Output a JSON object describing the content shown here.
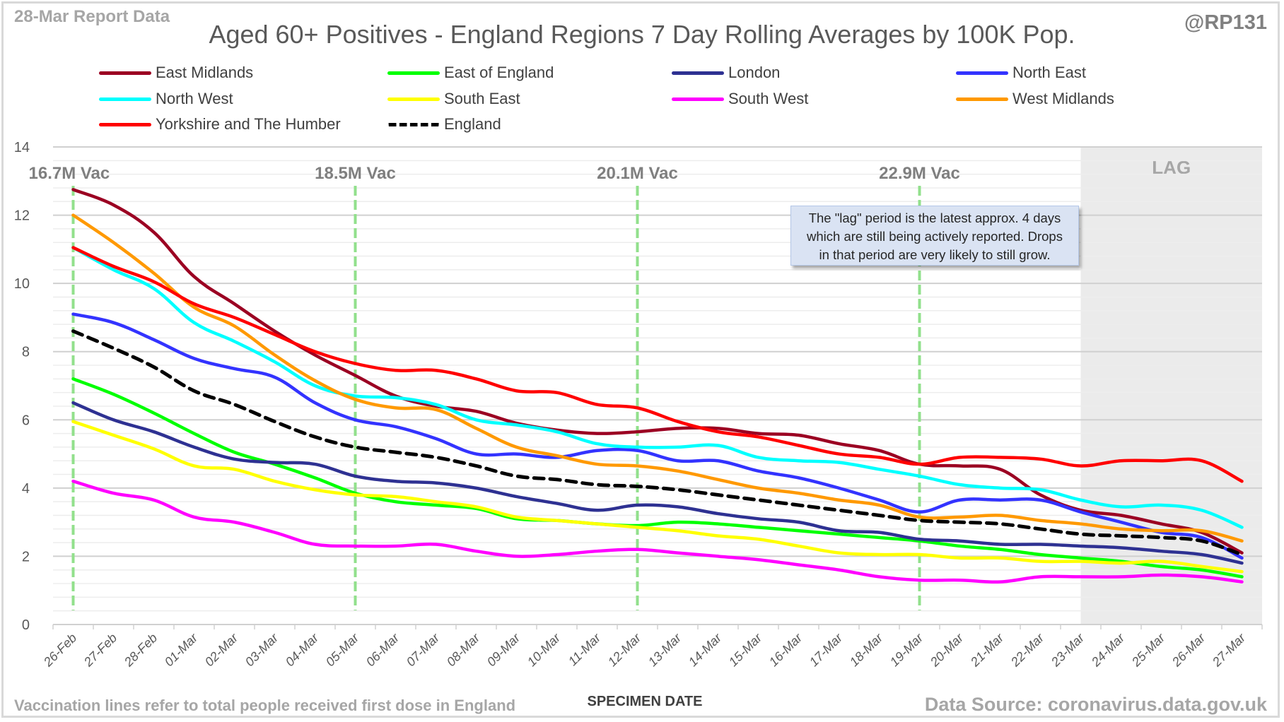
{
  "header": {
    "report_date": "28-Mar Report Data",
    "title": "Aged 60+ Positives - England Regions 7 Day Rolling Averages by 100K Pop.",
    "handle": "@RP131"
  },
  "footer": {
    "note": "Vaccination lines refer to total people received first dose in England",
    "source": "Data Source: coronavirus.data.gov.uk"
  },
  "annotation": {
    "lines": [
      "The \"lag\" period is the latest approx. 4 days",
      "which are still being actively reported.  Drops",
      "in that period are very likely to still grow."
    ]
  },
  "chart_data": {
    "type": "line",
    "title": "Aged 60+ Positives - England Regions 7 Day Rolling Averages by 100K Pop.",
    "xlabel": "SPECIMEN DATE",
    "ylabel": "",
    "ylim": [
      0,
      14
    ],
    "yticks": [
      0,
      2,
      4,
      6,
      8,
      10,
      12,
      14
    ],
    "grid": true,
    "legend_position": "top",
    "x": [
      "26-Feb",
      "27-Feb",
      "28-Feb",
      "01-Mar",
      "02-Mar",
      "03-Mar",
      "04-Mar",
      "05-Mar",
      "06-Mar",
      "07-Mar",
      "08-Mar",
      "09-Mar",
      "10-Mar",
      "11-Mar",
      "12-Mar",
      "13-Mar",
      "14-Mar",
      "15-Mar",
      "16-Mar",
      "17-Mar",
      "18-Mar",
      "19-Mar",
      "20-Mar",
      "21-Mar",
      "22-Mar",
      "23-Mar",
      "24-Mar",
      "25-Mar",
      "26-Mar",
      "27-Mar"
    ],
    "series": [
      {
        "name": "East Midlands",
        "color": "#9b0022",
        "dashed": false,
        "values": [
          12.75,
          12.3,
          11.5,
          10.2,
          9.4,
          8.6,
          7.9,
          7.3,
          6.7,
          6.4,
          6.25,
          5.9,
          5.7,
          5.6,
          5.65,
          5.75,
          5.75,
          5.6,
          5.55,
          5.3,
          5.1,
          4.7,
          4.65,
          4.55,
          3.8,
          3.35,
          3.2,
          2.95,
          2.7,
          2.1
        ]
      },
      {
        "name": "East of England",
        "color": "#00ff00",
        "dashed": false,
        "values": [
          7.2,
          6.75,
          6.2,
          5.6,
          5.05,
          4.7,
          4.3,
          3.85,
          3.6,
          3.5,
          3.4,
          3.1,
          3.05,
          2.95,
          2.9,
          3.0,
          2.95,
          2.85,
          2.75,
          2.65,
          2.55,
          2.45,
          2.3,
          2.2,
          2.05,
          1.95,
          1.85,
          1.7,
          1.6,
          1.4
        ]
      },
      {
        "name": "London",
        "color": "#2e3192",
        "dashed": false,
        "values": [
          6.5,
          6.0,
          5.65,
          5.2,
          4.85,
          4.75,
          4.7,
          4.35,
          4.2,
          4.15,
          4.0,
          3.75,
          3.55,
          3.35,
          3.5,
          3.45,
          3.25,
          3.1,
          3.0,
          2.75,
          2.7,
          2.5,
          2.45,
          2.35,
          2.35,
          2.3,
          2.25,
          2.15,
          2.05,
          1.8
        ]
      },
      {
        "name": "North East",
        "color": "#3333ff",
        "dashed": false,
        "values": [
          9.1,
          8.85,
          8.35,
          7.8,
          7.5,
          7.25,
          6.5,
          6.0,
          5.8,
          5.45,
          5.0,
          5.0,
          4.9,
          5.1,
          5.1,
          4.8,
          4.8,
          4.5,
          4.3,
          4.0,
          3.65,
          3.3,
          3.65,
          3.65,
          3.65,
          3.3,
          3.0,
          2.7,
          2.55,
          1.95
        ]
      },
      {
        "name": "North West",
        "color": "#00ffff",
        "dashed": false,
        "values": [
          11.05,
          10.4,
          9.85,
          8.85,
          8.3,
          7.7,
          7.0,
          6.7,
          6.65,
          6.45,
          6.0,
          5.85,
          5.65,
          5.3,
          5.2,
          5.2,
          5.25,
          4.9,
          4.8,
          4.75,
          4.55,
          4.35,
          4.1,
          4.0,
          3.95,
          3.65,
          3.45,
          3.5,
          3.35,
          2.85
        ]
      },
      {
        "name": "South East",
        "color": "#ffff00",
        "dashed": false,
        "values": [
          5.95,
          5.55,
          5.15,
          4.65,
          4.55,
          4.2,
          3.95,
          3.8,
          3.75,
          3.6,
          3.45,
          3.15,
          3.05,
          2.95,
          2.85,
          2.75,
          2.6,
          2.5,
          2.3,
          2.1,
          2.05,
          2.05,
          1.95,
          1.95,
          1.85,
          1.85,
          1.8,
          1.85,
          1.7,
          1.55
        ]
      },
      {
        "name": "South West",
        "color": "#ff00ff",
        "dashed": false,
        "values": [
          4.2,
          3.85,
          3.65,
          3.15,
          3.0,
          2.7,
          2.35,
          2.3,
          2.3,
          2.35,
          2.15,
          2.0,
          2.05,
          2.15,
          2.2,
          2.1,
          2.0,
          1.9,
          1.75,
          1.6,
          1.4,
          1.3,
          1.3,
          1.25,
          1.4,
          1.4,
          1.4,
          1.45,
          1.4,
          1.25
        ]
      },
      {
        "name": "West Midlands",
        "color": "#ff9900",
        "dashed": false,
        "values": [
          12.0,
          11.2,
          10.3,
          9.3,
          8.75,
          7.9,
          7.15,
          6.6,
          6.35,
          6.3,
          5.75,
          5.2,
          4.95,
          4.7,
          4.65,
          4.5,
          4.25,
          4.0,
          3.85,
          3.65,
          3.5,
          3.15,
          3.15,
          3.2,
          3.05,
          2.95,
          2.8,
          2.75,
          2.75,
          2.45
        ]
      },
      {
        "name": "Yorkshire and The Humber",
        "color": "#ff0000",
        "dashed": false,
        "values": [
          11.05,
          10.5,
          10.05,
          9.4,
          9.0,
          8.5,
          8.0,
          7.65,
          7.45,
          7.45,
          7.2,
          6.85,
          6.8,
          6.45,
          6.35,
          5.95,
          5.65,
          5.5,
          5.25,
          5.0,
          4.9,
          4.7,
          4.9,
          4.9,
          4.85,
          4.65,
          4.8,
          4.8,
          4.8,
          4.2
        ]
      },
      {
        "name": "England",
        "color": "#000000",
        "dashed": true,
        "values": [
          8.6,
          8.1,
          7.55,
          6.85,
          6.45,
          5.95,
          5.5,
          5.2,
          5.05,
          4.9,
          4.65,
          4.35,
          4.25,
          4.1,
          4.05,
          3.95,
          3.8,
          3.65,
          3.5,
          3.35,
          3.2,
          3.05,
          3.0,
          2.95,
          2.8,
          2.65,
          2.6,
          2.55,
          2.45,
          2.05
        ]
      }
    ],
    "vaccination_markers": [
      {
        "date": "26-Feb",
        "label": "16.7M Vac"
      },
      {
        "date": "05-Mar",
        "label": "18.5M Vac"
      },
      {
        "date": "12-Mar",
        "label": "20.1M Vac"
      },
      {
        "date": "19-Mar",
        "label": "22.9M Vac"
      }
    ],
    "lag_region": {
      "from": "23-Mar",
      "to": "27-Mar",
      "label": "LAG",
      "color": "#ebebeb"
    },
    "vaccination_line_color": "#92e08c"
  }
}
